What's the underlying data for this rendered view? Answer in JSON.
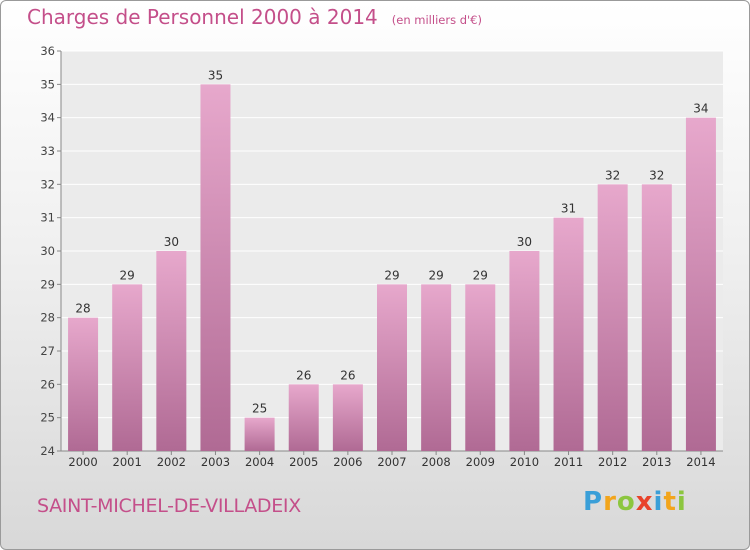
{
  "header": {
    "title": "Charges de Personnel 2000 à 2014",
    "unit": "(en milliers d'€)"
  },
  "footer": {
    "city": "SAINT-MICHEL-DE-VILLADEIX",
    "logo_letters": [
      "P",
      "r",
      "o",
      "x",
      "i",
      "t",
      "i"
    ],
    "logo_colors": [
      "#3a9fd8",
      "#f2a51c",
      "#8cc63f",
      "#e8432b",
      "#3a9fd8",
      "#f2a51c",
      "#8cc63f"
    ]
  },
  "colors": {
    "bar_light": "#e7a8cc",
    "bar_dark": "#b06a94",
    "title": "#c44f8a"
  },
  "chart_data": {
    "type": "bar",
    "categories": [
      "2000",
      "2001",
      "2002",
      "2003",
      "2004",
      "2005",
      "2006",
      "2007",
      "2008",
      "2009",
      "2010",
      "2011",
      "2012",
      "2013",
      "2014"
    ],
    "values": [
      28,
      29,
      30,
      35,
      25,
      26,
      26,
      29,
      29,
      29,
      30,
      31,
      32,
      32,
      34
    ],
    "ylim": [
      24,
      36
    ],
    "yticks": [
      24,
      25,
      26,
      27,
      28,
      29,
      30,
      31,
      32,
      33,
      34,
      35,
      36
    ],
    "grid": true,
    "data_labels": true
  }
}
